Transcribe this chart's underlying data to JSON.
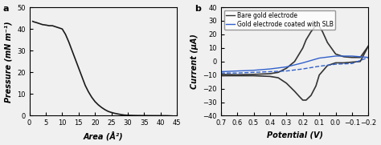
{
  "panel_a": {
    "label": "a",
    "xlabel": "Area (Å²)",
    "ylabel": "Pressure (mN m⁻¹)",
    "xlim": [
      0,
      45
    ],
    "ylim": [
      0,
      50
    ],
    "xticks": [
      0,
      5,
      10,
      15,
      20,
      25,
      30,
      35,
      40,
      45
    ],
    "yticks": [
      0,
      10,
      20,
      30,
      40,
      50
    ],
    "curve_color": "#1a1a1a",
    "curve_x": [
      1.0,
      1.5,
      2.0,
      3.0,
      4.0,
      5.0,
      6.0,
      7.0,
      8.0,
      9.0,
      10.0,
      11.0,
      12.0,
      13.0,
      14.0,
      15.0,
      16.0,
      17.0,
      18.0,
      19.0,
      20.0,
      21.0,
      22.0,
      23.0,
      24.0,
      25.0,
      26.0,
      27.0,
      28.0,
      29.0,
      30.0,
      32.0,
      35.0,
      38.0,
      40.0,
      42.0,
      43.5
    ],
    "curve_y": [
      43.5,
      43.2,
      43.0,
      42.5,
      42.0,
      41.8,
      41.5,
      41.5,
      41.0,
      40.5,
      40.0,
      37.5,
      34.0,
      30.0,
      26.0,
      22.0,
      18.0,
      14.0,
      11.0,
      8.5,
      6.5,
      5.0,
      3.8,
      2.8,
      2.0,
      1.5,
      1.1,
      0.8,
      0.5,
      0.3,
      0.2,
      0.1,
      0.05,
      0.02,
      0.01,
      0.0,
      -0.1
    ]
  },
  "panel_b": {
    "label": "b",
    "xlabel": "Potential (V)",
    "ylabel": "Current (μA)",
    "xlim": [
      0.7,
      -0.2
    ],
    "ylim": [
      -40,
      40
    ],
    "xticks": [
      0.7,
      0.6,
      0.5,
      0.4,
      0.3,
      0.2,
      0.1,
      0.0,
      -0.1,
      -0.2
    ],
    "yticks": [
      -40,
      -30,
      -20,
      -10,
      0,
      10,
      20,
      30,
      40
    ],
    "legend": [
      "Bare gold electrode",
      "Gold electrode coated with SLB"
    ],
    "bare_color": "#333333",
    "slb_color": "#3060cc",
    "bare_x_top": [
      0.7,
      0.6,
      0.5,
      0.4,
      0.35,
      0.3,
      0.25,
      0.2,
      0.18,
      0.15,
      0.12,
      0.1,
      0.08,
      0.05,
      0.0,
      -0.05,
      -0.1,
      -0.15,
      -0.2
    ],
    "bare_y_top": [
      -9.5,
      -9.8,
      -9.5,
      -9.0,
      -8.0,
      -5.0,
      0.0,
      10.0,
      16.0,
      22.0,
      26.5,
      26.0,
      22.0,
      14.0,
      5.5,
      3.5,
      3.0,
      3.0,
      11.5
    ],
    "bare_x_bot": [
      0.7,
      0.6,
      0.5,
      0.4,
      0.35,
      0.3,
      0.25,
      0.22,
      0.2,
      0.18,
      0.15,
      0.12,
      0.1,
      0.05,
      0.0,
      -0.05,
      -0.1,
      -0.15,
      -0.2
    ],
    "bare_y_bot": [
      -10.5,
      -10.5,
      -10.5,
      -11.0,
      -12.0,
      -16.0,
      -22.0,
      -26.0,
      -28.5,
      -28.5,
      -25.0,
      -18.0,
      -10.0,
      -3.0,
      -1.0,
      -1.0,
      -0.5,
      0.0,
      11.5
    ],
    "slb_x_top": [
      0.7,
      0.6,
      0.5,
      0.4,
      0.3,
      0.2,
      0.1,
      0.0,
      -0.1,
      -0.2
    ],
    "slb_y_top": [
      -7.5,
      -7.0,
      -6.5,
      -5.5,
      -4.0,
      -1.0,
      2.5,
      4.0,
      4.0,
      3.0
    ],
    "slb_x_bot": [
      0.7,
      0.6,
      0.5,
      0.4,
      0.3,
      0.2,
      0.1,
      0.0,
      -0.1,
      -0.2
    ],
    "slb_y_bot": [
      -8.5,
      -8.5,
      -8.0,
      -7.5,
      -7.0,
      -5.5,
      -3.5,
      -2.0,
      -1.5,
      3.0
    ]
  },
  "fig_bg": "#f0f0f0",
  "axes_bg": "#f0f0f0",
  "fontsize_label": 7,
  "fontsize_tick": 6,
  "fontsize_legend": 5.5,
  "fontsize_panel": 8
}
